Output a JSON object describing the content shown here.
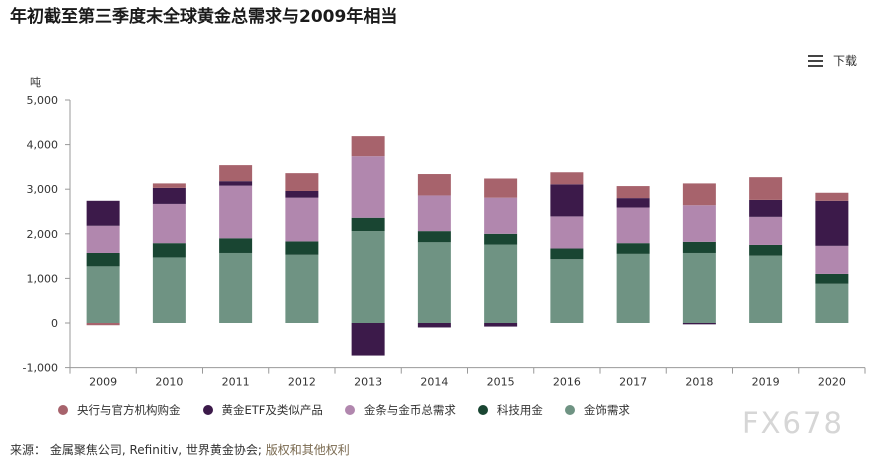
{
  "title": "年初截至第三季度末全球黄金总需求与2009年相当",
  "download_label": "下载",
  "source_prefix": "来源：",
  "source_text": "金属聚焦公司, Refinitiv, 世界黄金协会;",
  "source_link": "版权和其他权利",
  "watermark": "FX678",
  "chart_data": {
    "type": "bar",
    "stacked": true,
    "ylabel": "吨",
    "ylim": [
      -1000,
      5000
    ],
    "yticks": [
      -1000,
      0,
      1000,
      2000,
      3000,
      4000,
      5000
    ],
    "ytick_labels": [
      "-1,000",
      "0",
      "1,000",
      "2,000",
      "3,000",
      "4,000",
      "5,000"
    ],
    "grid": false,
    "legend_position": "bottom",
    "categories": [
      "2009",
      "2010",
      "2011",
      "2012",
      "2013",
      "2014",
      "2015",
      "2016",
      "2017",
      "2018",
      "2019",
      "2020"
    ],
    "series": [
      {
        "name": "金饰需求",
        "color": "#6f9383",
        "values": [
          1270,
          1470,
          1570,
          1530,
          2060,
          1810,
          1760,
          1430,
          1550,
          1570,
          1510,
          880
        ]
      },
      {
        "name": "科技用金",
        "color": "#194532",
        "values": [
          300,
          320,
          330,
          300,
          300,
          250,
          240,
          240,
          240,
          250,
          240,
          220
        ]
      },
      {
        "name": "金条与金币总需求",
        "color": "#b187ae",
        "values": [
          610,
          880,
          1180,
          980,
          1380,
          800,
          810,
          720,
          800,
          820,
          630,
          630
        ]
      },
      {
        "name": "黄金ETF及类似产品",
        "color": "#3c1a4a",
        "values": [
          560,
          360,
          100,
          150,
          -730,
          -100,
          -80,
          720,
          210,
          -30,
          380,
          1010
        ]
      },
      {
        "name": "央行与官方机构购金",
        "color": "#a7636c",
        "values": [
          -50,
          100,
          360,
          400,
          450,
          480,
          430,
          270,
          270,
          490,
          510,
          180
        ]
      }
    ],
    "legend_order": [
      "央行与官方机构购金",
      "黄金ETF及类似产品",
      "金条与金币总需求",
      "科技用金",
      "金饰需求"
    ]
  }
}
